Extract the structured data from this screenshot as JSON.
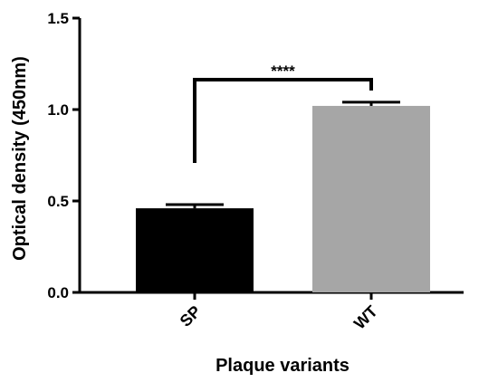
{
  "chart_data": {
    "type": "bar",
    "x_label": "Plaque variants",
    "y_label": "Optical density (450nm)",
    "categories": [
      "SP",
      "WT"
    ],
    "values": [
      0.46,
      1.02
    ],
    "errors": [
      0.02,
      0.02
    ],
    "colors": [
      "#000000",
      "#a6a6a6"
    ],
    "annotation": "****",
    "ylim": [
      0,
      1.5
    ],
    "yticks": [
      {
        "value": 0,
        "label": "0.0"
      },
      0.5,
      {
        "value": 1,
        "label": "1.0"
      },
      {
        "value": 1.5,
        "label": "1.5"
      }
    ]
  }
}
